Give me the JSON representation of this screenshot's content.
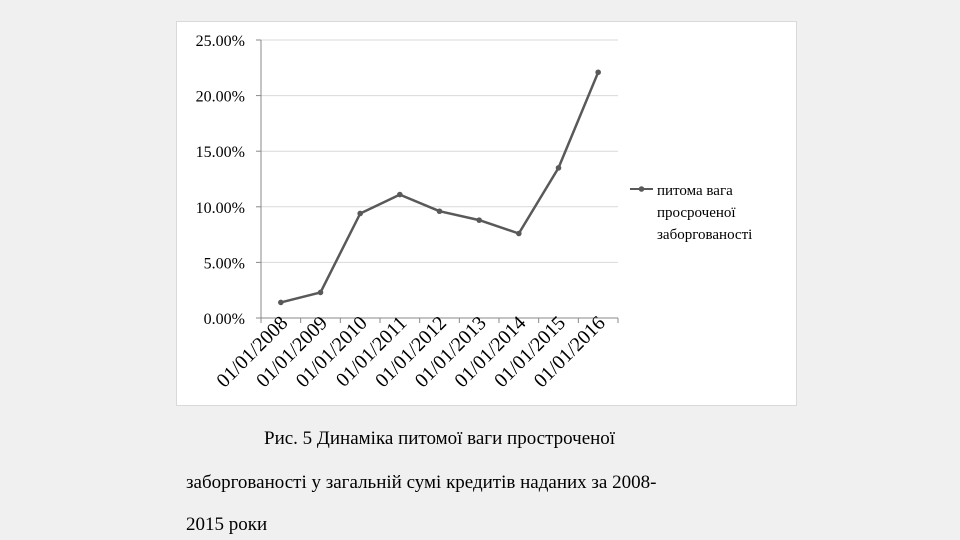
{
  "chart_data": {
    "type": "line",
    "categories": [
      "01/01/2008",
      "01/01/2009",
      "01/01/2010",
      "01/01/2011",
      "01/01/2012",
      "01/01/2013",
      "01/01/2014",
      "01/01/2015",
      "01/01/2016"
    ],
    "series": [
      {
        "name": "питома вага просроченої заборгованості",
        "legend_lines": [
          "питома вага",
          "просроченої",
          "заборгованості"
        ],
        "values": [
          1.4,
          2.3,
          9.4,
          11.1,
          9.6,
          8.8,
          7.6,
          13.5,
          22.1
        ]
      }
    ],
    "y_ticks": [
      "0.00%",
      "5.00%",
      "10.00%",
      "15.00%",
      "20.00%",
      "25.00%"
    ],
    "ylim": [
      0,
      25
    ],
    "grid": true,
    "legend_position": "right",
    "colors": {
      "line": "#595959",
      "grid": "#d9d9d9",
      "axis": "#888888"
    }
  },
  "caption": {
    "line1": "Рис. 5 Динаміка питомої ваги простроченої",
    "line2": "заборгованості у загальній сумі кредитів наданих за 2008-",
    "line3": "2015 роки"
  }
}
